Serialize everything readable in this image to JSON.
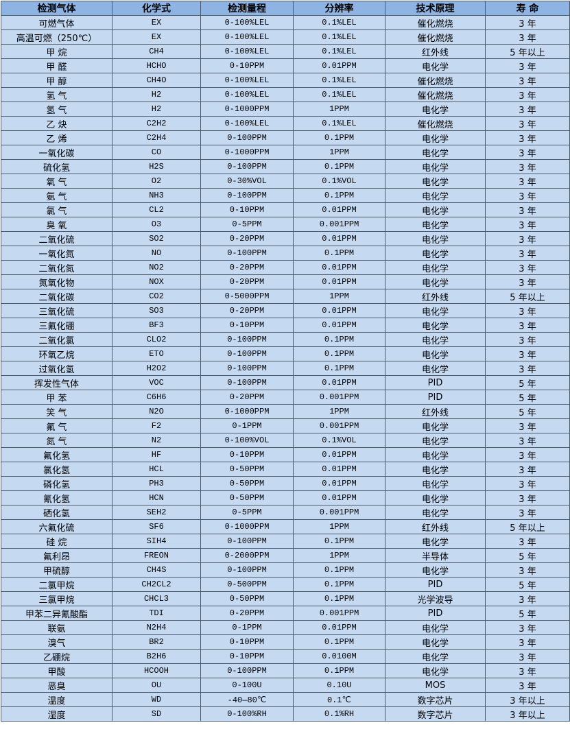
{
  "table": {
    "headers": [
      "检测气体",
      "化学式",
      "检测量程",
      "分辨率",
      "技术原理",
      "寿 命"
    ],
    "rows": [
      [
        "可燃气体",
        "EX",
        "0-100%LEL",
        "0.1%LEL",
        "催化燃烧",
        "3 年"
      ],
      [
        "高温可燃（250℃）",
        "EX",
        "0-100%LEL",
        "0.1%LEL",
        "催化燃烧",
        "3 年"
      ],
      [
        "甲 烷",
        "CH4",
        "0-100%LEL",
        "0.1%LEL",
        "红外线",
        "5 年以上"
      ],
      [
        "甲 醛",
        "HCHO",
        "0-10PPM",
        "0.01PPM",
        "电化学",
        "3 年"
      ],
      [
        "甲 醇",
        "CH4O",
        "0-100%LEL",
        "0.1%LEL",
        "催化燃烧",
        "3 年"
      ],
      [
        "氢 气",
        "H2",
        "0-100%LEL",
        "0.1%LEL",
        "催化燃烧",
        "3 年"
      ],
      [
        "氢 气",
        "H2",
        "0-1000PPM",
        "1PPM",
        "电化学",
        "3 年"
      ],
      [
        "乙 炔",
        "C2H2",
        "0-100%LEL",
        "0.1%LEL",
        "催化燃烧",
        "3 年"
      ],
      [
        "乙 烯",
        "C2H4",
        "0-100PPM",
        "0.1PPM",
        "电化学",
        "3 年"
      ],
      [
        "一氧化碳",
        "CO",
        "0-1000PPM",
        "1PPM",
        "电化学",
        "3 年"
      ],
      [
        "硫化氢",
        "H2S",
        "0-100PPM",
        "0.1PPM",
        "电化学",
        "3 年"
      ],
      [
        "氧 气",
        "O2",
        "0-30%VOL",
        "0.1%VOL",
        "电化学",
        "3 年"
      ],
      [
        "氨 气",
        "NH3",
        "0-100PPM",
        "0.1PPM",
        "电化学",
        "3 年"
      ],
      [
        "氯 气",
        "CL2",
        "0-10PPM",
        "0.01PPM",
        "电化学",
        "3 年"
      ],
      [
        "臭 氧",
        "O3",
        "0-5PPM",
        "0.001PPM",
        "电化学",
        "3 年"
      ],
      [
        "二氧化硫",
        "SO2",
        "0-20PPM",
        "0.01PPM",
        "电化学",
        "3 年"
      ],
      [
        "一氧化氮",
        "NO",
        "0-100PPM",
        "0.1PPM",
        "电化学",
        "3 年"
      ],
      [
        "二氧化氮",
        "NO2",
        "0-20PPM",
        "0.01PPM",
        "电化学",
        "3 年"
      ],
      [
        "氮氧化物",
        "NOX",
        "0-20PPM",
        "0.01PPM",
        "电化学",
        "3 年"
      ],
      [
        "二氧化碳",
        "CO2",
        "0-5000PPM",
        "1PPM",
        "红外线",
        "5 年以上"
      ],
      [
        "三氧化硫",
        "SO3",
        "0-20PPM",
        "0.01PPM",
        "电化学",
        "3 年"
      ],
      [
        "三氟化硼",
        "BF3",
        "0-10PPM",
        "0.01PPM",
        "电化学",
        "3 年"
      ],
      [
        "二氧化氯",
        "CLO2",
        "0-100PPM",
        "0.1PPM",
        "电化学",
        "3 年"
      ],
      [
        "环氧乙烷",
        "ETO",
        "0-100PPM",
        "0.1PPM",
        "电化学",
        "3 年"
      ],
      [
        "过氧化氢",
        "H2O2",
        "0-100PPM",
        "0.1PPM",
        "电化学",
        "3 年"
      ],
      [
        "挥发性气体",
        "VOC",
        "0-100PPM",
        "0.01PPM",
        "PID",
        "5 年"
      ],
      [
        "甲 苯",
        "C6H6",
        "0-20PPM",
        "0.001PPM",
        "PID",
        "5 年"
      ],
      [
        "笑 气",
        "N2O",
        "0-1000PPM",
        "1PPM",
        "红外线",
        "5 年"
      ],
      [
        "氟 气",
        "F2",
        "0-1PPM",
        "0.001PPM",
        "电化学",
        "3 年"
      ],
      [
        "氮 气",
        "N2",
        "0-100%VOL",
        "0.1%VOL",
        "电化学",
        "3 年"
      ],
      [
        "氟化氢",
        "HF",
        "0-10PPM",
        "0.01PPM",
        "电化学",
        "3 年"
      ],
      [
        "氯化氢",
        "HCL",
        "0-50PPM",
        "0.01PPM",
        "电化学",
        "3 年"
      ],
      [
        "磷化氢",
        "PH3",
        "0-50PPM",
        "0.01PPM",
        "电化学",
        "3 年"
      ],
      [
        "氰化氢",
        "HCN",
        "0-50PPM",
        "0.01PPM",
        "电化学",
        "3 年"
      ],
      [
        "硒化氢",
        "SEH2",
        "0-5PPM",
        "0.001PPM",
        "电化学",
        "3 年"
      ],
      [
        "六氟化硫",
        "SF6",
        "0-1000PPM",
        "1PPM",
        "红外线",
        "5 年以上"
      ],
      [
        "硅 烷",
        "SIH4",
        "0-100PPM",
        "0.1PPM",
        "电化学",
        "3 年"
      ],
      [
        "氟利昂",
        "FREON",
        "0-2000PPM",
        "1PPM",
        "半导体",
        "5 年"
      ],
      [
        "甲硫醇",
        "CH4S",
        "0-100PPM",
        "0.1PPM",
        "电化学",
        "3 年"
      ],
      [
        "二氯甲烷",
        "CH2CL2",
        "0-500PPM",
        "0.1PPM",
        "PID",
        "5 年"
      ],
      [
        "三氯甲烷",
        "CHCL3",
        "0-50PPM",
        "0.1PPM",
        "光学波导",
        "3 年"
      ],
      [
        "甲苯二异氰酸酯",
        "TDI",
        "0-20PPM",
        "0.001PPM",
        "PID",
        "5 年"
      ],
      [
        "联氨",
        "N2H4",
        "0-1PPM",
        "0.01PPM",
        "电化学",
        "3 年"
      ],
      [
        "溴气",
        "BR2",
        "0-10PPM",
        "0.1PPM",
        "电化学",
        "3 年"
      ],
      [
        "乙硼烷",
        "B2H6",
        "0-10PPM",
        "0.0100M",
        "电化学",
        "3 年"
      ],
      [
        "甲酸",
        "HCOOH",
        "0-100PPM",
        "0.1PPM",
        "电化学",
        "3 年"
      ],
      [
        "恶臭",
        "OU",
        "0-100U",
        "0.10U",
        "MOS",
        "3 年"
      ],
      [
        "温度",
        "WD",
        "-40—80℃",
        "0.1℃",
        "数字芯片",
        "3 年以上"
      ],
      [
        "湿度",
        "SD",
        "0-100%RH",
        "0.1%RH",
        "数字芯片",
        "3 年以上"
      ]
    ]
  },
  "colors": {
    "header_bg": "#8db4e2",
    "row_bg": "#c5d9f1"
  }
}
